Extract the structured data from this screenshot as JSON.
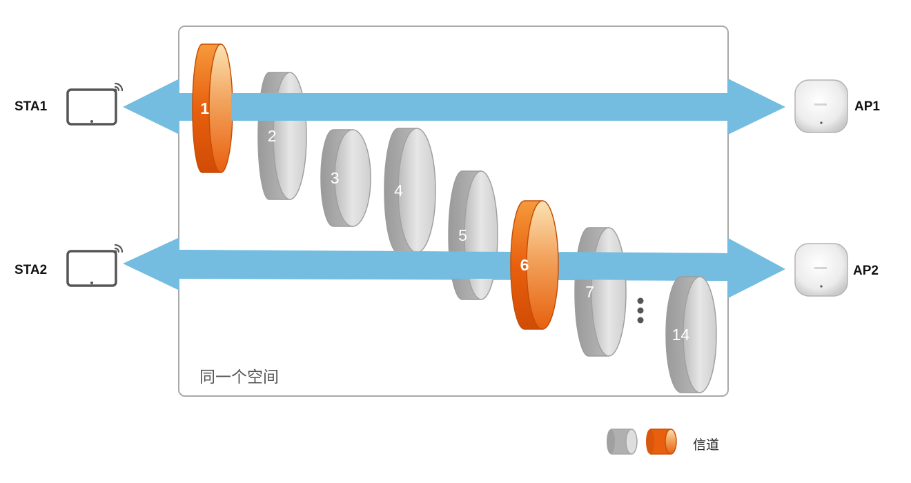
{
  "stations": [
    {
      "label": "STA1"
    },
    {
      "label": "STA2"
    }
  ],
  "access_points": [
    {
      "label": "AP1"
    },
    {
      "label": "AP2"
    }
  ],
  "space_label": "同一个空间",
  "channels": [
    {
      "label": "1",
      "active": true
    },
    {
      "label": "2",
      "active": false
    },
    {
      "label": "3",
      "active": false
    },
    {
      "label": "4",
      "active": false
    },
    {
      "label": "5",
      "active": false
    },
    {
      "label": "6",
      "active": true
    },
    {
      "label": "7",
      "active": false
    },
    {
      "label": "14",
      "active": false
    }
  ],
  "legend": {
    "label": "信道"
  },
  "colors": {
    "arrow": "#74bde0",
    "active_channel": "#e8600e",
    "inactive_channel": "#bdbdbd",
    "frame": "#a8a8a8"
  }
}
